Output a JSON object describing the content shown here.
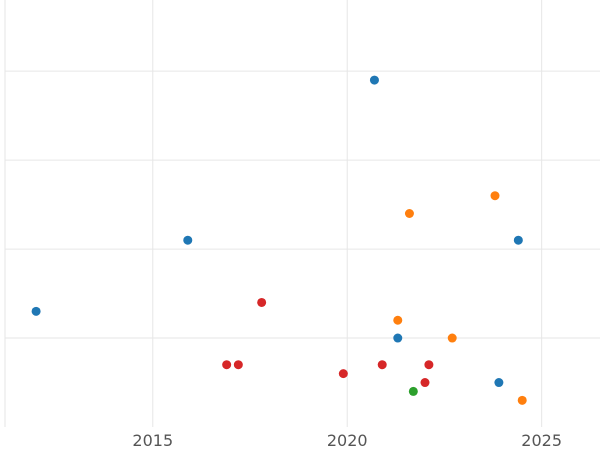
{
  "chart_data": {
    "type": "scatter",
    "title": "",
    "xlabel": "",
    "ylabel": "",
    "xlim": [
      2011.2,
      2026.5
    ],
    "ylim": [
      0,
      24
    ],
    "x_ticks": [
      2015,
      2020,
      2025
    ],
    "x_tick_labels": [
      "2015",
      "2020",
      "2025"
    ],
    "y_gridlines": [
      5,
      10,
      15,
      20
    ],
    "grid": true,
    "legend": "none",
    "series": [
      {
        "color": "#1f77b4",
        "points": [
          {
            "x": 2012.0,
            "y": 6.5
          },
          {
            "x": 2015.9,
            "y": 10.5
          },
          {
            "x": 2020.7,
            "y": 19.5
          },
          {
            "x": 2021.3,
            "y": 5.0
          },
          {
            "x": 2023.9,
            "y": 2.5
          },
          {
            "x": 2024.4,
            "y": 10.5
          }
        ]
      },
      {
        "color": "#ff7f0e",
        "points": [
          {
            "x": 2021.3,
            "y": 6.0
          },
          {
            "x": 2021.6,
            "y": 12.0
          },
          {
            "x": 2022.7,
            "y": 5.0
          },
          {
            "x": 2023.8,
            "y": 13.0
          },
          {
            "x": 2024.5,
            "y": 1.5
          }
        ]
      },
      {
        "color": "#2ca02c",
        "points": [
          {
            "x": 2021.7,
            "y": 2.0
          }
        ]
      },
      {
        "color": "#d62728",
        "points": [
          {
            "x": 2016.9,
            "y": 3.5
          },
          {
            "x": 2017.2,
            "y": 3.5
          },
          {
            "x": 2017.8,
            "y": 7.0
          },
          {
            "x": 2019.9,
            "y": 3.0
          },
          {
            "x": 2020.9,
            "y": 3.5
          },
          {
            "x": 2022.0,
            "y": 2.5
          },
          {
            "x": 2022.1,
            "y": 3.5
          }
        ]
      }
    ]
  }
}
